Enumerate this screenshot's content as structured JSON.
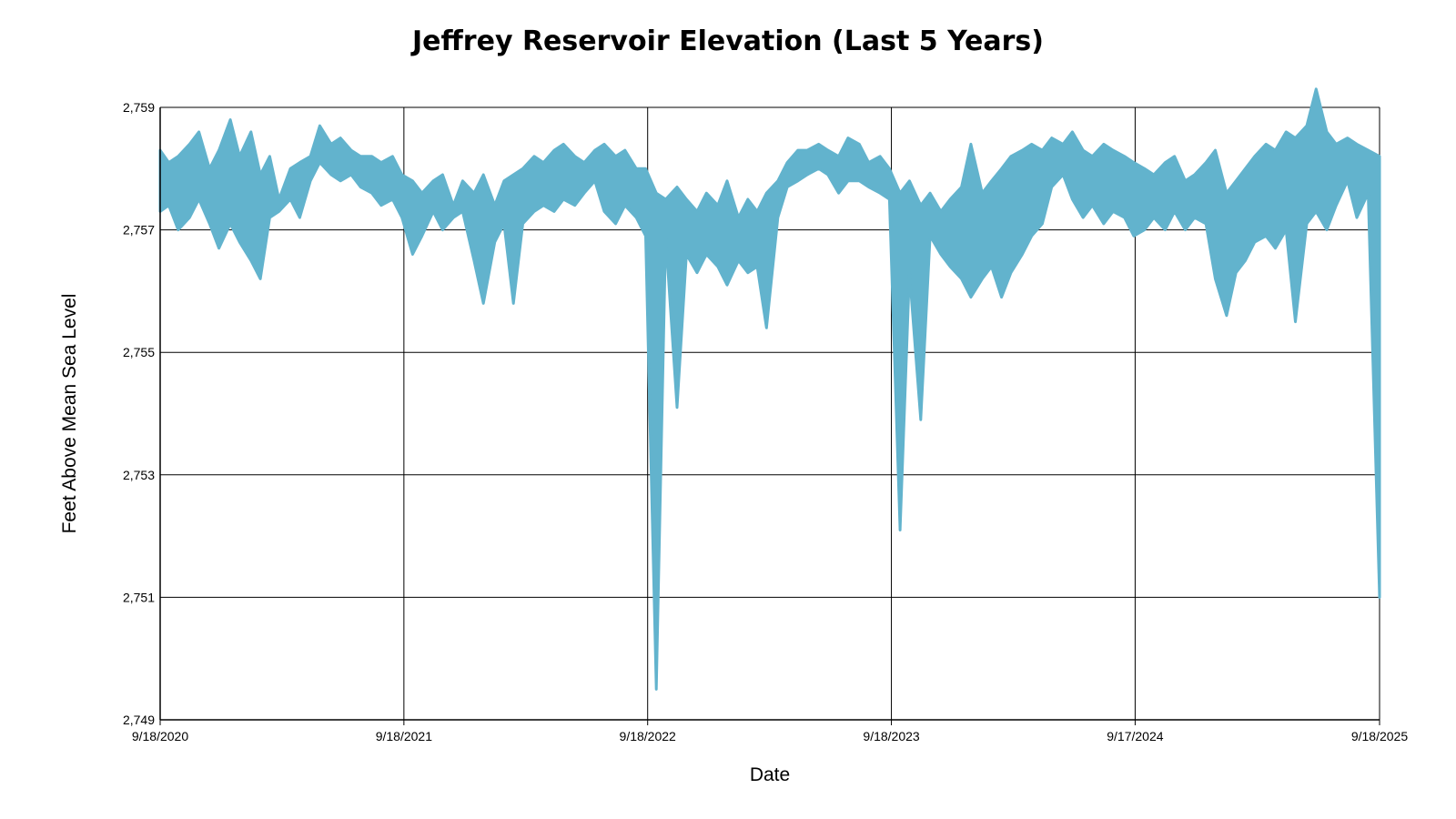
{
  "chart_data": {
    "type": "area",
    "title": "Jeffrey Reservoir Elevation (Last 5 Years)",
    "xlabel": "Date",
    "ylabel": "Feet Above Mean Sea Level",
    "ylim": [
      2749,
      2759
    ],
    "y_ticks": [
      2749,
      2751,
      2753,
      2755,
      2757,
      2759
    ],
    "y_tick_labels": [
      "2,749",
      "2,751",
      "2,753",
      "2,755",
      "2,757",
      "2,759"
    ],
    "x_ticks": [
      "2020-09-18",
      "2021-09-18",
      "2022-09-18",
      "2023-09-18",
      "2024-09-17",
      "2025-09-18"
    ],
    "x_tick_labels": [
      "9/18/2020",
      "9/18/2021",
      "9/18/2022",
      "9/18/2023",
      "9/17/2024",
      "9/18/2025"
    ],
    "xlim": [
      "2020-09-18",
      "2025-09-18"
    ],
    "grid": true,
    "color": "#62b3cd",
    "series": [
      {
        "x": [
          "2020-09-18",
          "2020-10-01",
          "2020-10-15",
          "2020-11-01",
          "2020-11-15",
          "2020-12-01",
          "2020-12-15",
          "2021-01-01",
          "2021-01-15",
          "2021-02-01",
          "2021-02-15",
          "2021-03-01",
          "2021-03-15",
          "2021-04-01",
          "2021-04-15",
          "2021-05-01",
          "2021-05-15",
          "2021-06-01",
          "2021-06-15",
          "2021-07-01",
          "2021-07-15",
          "2021-08-01",
          "2021-08-15",
          "2021-09-01",
          "2021-09-15",
          "2021-10-01",
          "2021-10-15",
          "2021-11-01",
          "2021-11-15",
          "2021-12-01",
          "2021-12-15",
          "2022-01-01",
          "2022-01-15",
          "2022-02-01",
          "2022-02-15",
          "2022-03-01",
          "2022-03-15",
          "2022-04-01",
          "2022-04-15",
          "2022-05-01",
          "2022-05-15",
          "2022-06-01",
          "2022-06-15",
          "2022-07-01",
          "2022-07-15",
          "2022-08-01",
          "2022-08-15",
          "2022-09-01",
          "2022-09-15",
          "2022-10-01",
          "2022-10-15",
          "2022-11-01",
          "2022-11-15",
          "2022-12-01",
          "2022-12-15",
          "2023-01-01",
          "2023-01-15",
          "2023-02-01",
          "2023-02-15",
          "2023-03-01",
          "2023-03-15",
          "2023-04-01",
          "2023-04-15",
          "2023-05-01",
          "2023-05-15",
          "2023-06-01",
          "2023-06-15",
          "2023-07-01",
          "2023-07-15",
          "2023-08-01",
          "2023-08-15",
          "2023-09-01",
          "2023-09-15",
          "2023-10-01",
          "2023-10-15",
          "2023-11-01",
          "2023-11-15",
          "2023-12-01",
          "2023-12-15",
          "2024-01-01",
          "2024-01-15",
          "2024-02-01",
          "2024-02-15",
          "2024-03-01",
          "2024-03-15",
          "2024-04-01",
          "2024-04-15",
          "2024-05-01",
          "2024-05-15",
          "2024-06-01",
          "2024-06-15",
          "2024-07-01",
          "2024-07-15",
          "2024-08-01",
          "2024-08-15",
          "2024-09-01",
          "2024-09-15",
          "2024-10-01",
          "2024-10-15",
          "2024-11-01",
          "2024-11-15",
          "2024-12-01",
          "2024-12-15",
          "2025-01-01",
          "2025-01-15",
          "2025-02-01",
          "2025-02-15",
          "2025-03-01",
          "2025-03-15",
          "2025-04-01",
          "2025-04-15",
          "2025-05-01",
          "2025-05-15",
          "2025-06-01",
          "2025-06-15",
          "2025-07-01",
          "2025-07-15",
          "2025-08-01",
          "2025-08-15",
          "2025-09-01",
          "2025-09-18"
        ],
        "high": [
          2758.3,
          2758.1,
          2758.2,
          2758.4,
          2758.6,
          2758.0,
          2758.3,
          2758.8,
          2758.2,
          2758.6,
          2757.9,
          2758.2,
          2757.5,
          2758.0,
          2758.1,
          2758.2,
          2758.7,
          2758.4,
          2758.5,
          2758.3,
          2758.2,
          2758.2,
          2758.1,
          2758.2,
          2757.9,
          2757.8,
          2757.6,
          2757.8,
          2757.9,
          2757.4,
          2757.8,
          2757.6,
          2757.9,
          2757.4,
          2757.8,
          2757.9,
          2758.0,
          2758.2,
          2758.1,
          2758.3,
          2758.4,
          2758.2,
          2758.1,
          2758.3,
          2758.4,
          2758.2,
          2758.3,
          2758.0,
          2758.0,
          2757.6,
          2757.5,
          2757.7,
          2757.5,
          2757.3,
          2757.6,
          2757.4,
          2757.8,
          2757.2,
          2757.5,
          2757.3,
          2757.6,
          2757.8,
          2758.1,
          2758.3,
          2758.3,
          2758.4,
          2758.3,
          2758.2,
          2758.5,
          2758.4,
          2758.1,
          2758.2,
          2758.0,
          2757.6,
          2757.8,
          2757.4,
          2757.6,
          2757.3,
          2757.5,
          2757.7,
          2758.4,
          2757.6,
          2757.8,
          2758.0,
          2758.2,
          2758.3,
          2758.4,
          2758.3,
          2758.5,
          2758.4,
          2758.6,
          2758.3,
          2758.2,
          2758.4,
          2758.3,
          2758.2,
          2758.1,
          2758.0,
          2757.9,
          2758.1,
          2758.2,
          2757.8,
          2757.9,
          2758.1,
          2758.3,
          2757.6,
          2757.8,
          2758.0,
          2758.2,
          2758.4,
          2758.3,
          2758.6,
          2758.5,
          2758.7,
          2759.3,
          2758.6,
          2758.4,
          2758.5,
          2758.4,
          2758.3,
          2758.2
        ],
        "low": [
          2757.3,
          2757.4,
          2757.0,
          2757.2,
          2757.5,
          2757.1,
          2756.7,
          2757.1,
          2756.8,
          2756.5,
          2756.2,
          2757.2,
          2757.3,
          2757.5,
          2757.2,
          2757.8,
          2758.1,
          2757.9,
          2757.8,
          2757.9,
          2757.7,
          2757.6,
          2757.4,
          2757.5,
          2757.2,
          2756.6,
          2756.9,
          2757.3,
          2757.0,
          2757.2,
          2757.3,
          2756.5,
          2755.8,
          2756.8,
          2757.1,
          2755.8,
          2757.1,
          2757.3,
          2757.4,
          2757.3,
          2757.5,
          2757.4,
          2757.6,
          2757.8,
          2757.3,
          2757.1,
          2757.4,
          2757.2,
          2756.9,
          2749.5,
          2756.9,
          2754.1,
          2756.6,
          2756.3,
          2756.6,
          2756.4,
          2756.1,
          2756.5,
          2756.3,
          2756.4,
          2755.4,
          2757.2,
          2757.7,
          2757.8,
          2757.9,
          2758.0,
          2757.9,
          2757.6,
          2757.8,
          2757.8,
          2757.7,
          2757.6,
          2757.5,
          2752.1,
          2756.3,
          2753.9,
          2756.9,
          2756.6,
          2756.4,
          2756.2,
          2755.9,
          2756.2,
          2756.4,
          2755.9,
          2756.3,
          2756.6,
          2756.9,
          2757.1,
          2757.7,
          2757.9,
          2757.5,
          2757.2,
          2757.4,
          2757.1,
          2757.3,
          2757.2,
          2756.9,
          2757.0,
          2757.2,
          2757.0,
          2757.3,
          2757.0,
          2757.2,
          2757.1,
          2756.2,
          2755.6,
          2756.3,
          2756.5,
          2756.8,
          2756.9,
          2756.7,
          2757.0,
          2755.5,
          2757.1,
          2757.3,
          2757.0,
          2757.4,
          2757.8,
          2757.2,
          2757.6,
          2751.0
        ]
      }
    ]
  }
}
